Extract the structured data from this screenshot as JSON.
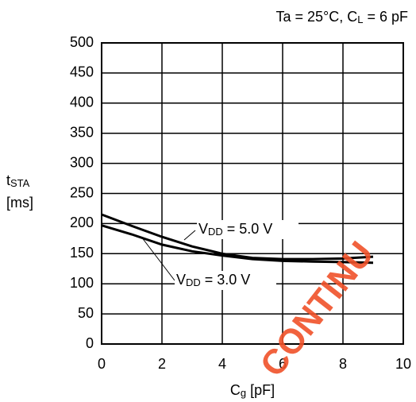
{
  "chart_data": {
    "type": "line",
    "annotation": [
      "Ta = 25°C, C",
      "L",
      " = 6 pF"
    ],
    "ylabel": [
      "t",
      "STA"
    ],
    "yunit": "[ms]",
    "xlabel": [
      "C",
      "g",
      " [pF]"
    ],
    "watermark": "CONTINU",
    "x": [
      0,
      1,
      2,
      3,
      4,
      5,
      6,
      7,
      8,
      9
    ],
    "series": [
      {
        "name": [
          "V",
          "DD",
          " = 5.0 V"
        ],
        "color": "#000000",
        "values": [
          215,
          196,
          178,
          162,
          150,
          143,
          141,
          141,
          142,
          145
        ]
      },
      {
        "name": [
          "V",
          "DD",
          " = 3.0 V"
        ],
        "color": "#000000",
        "values": [
          197,
          182,
          165,
          154,
          147,
          141,
          138,
          137,
          136,
          135
        ]
      }
    ],
    "xlim": [
      0,
      10
    ],
    "ylim": [
      0,
      500
    ],
    "xticks": [
      0,
      2,
      4,
      6,
      8,
      10
    ],
    "yticks": [
      0,
      50,
      100,
      150,
      200,
      250,
      300,
      350,
      400,
      450,
      500
    ],
    "grid": true
  }
}
